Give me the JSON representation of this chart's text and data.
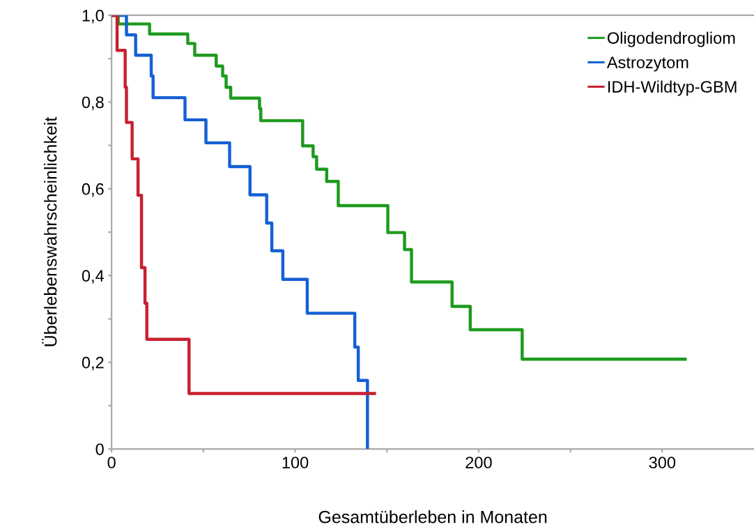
{
  "chart_data": {
    "type": "step",
    "xlabel": "Gesamtüberleben in Monaten",
    "ylabel": "Überlebenswahrscheinlichkeit",
    "xlim": [
      0,
      350
    ],
    "ylim": [
      0,
      1
    ],
    "xticks": [
      0,
      {
        "value": 50,
        "label": null
      },
      100,
      {
        "value": 150,
        "label": null
      },
      200,
      {
        "value": 250,
        "label": null
      },
      300
    ],
    "yticks": [
      {
        "value": 0,
        "label": "0"
      },
      {
        "value": 0.1,
        "label": null
      },
      {
        "value": 0.2,
        "label": "0,2"
      },
      {
        "value": 0.3,
        "label": null
      },
      {
        "value": 0.4,
        "label": "0,4"
      },
      {
        "value": 0.5,
        "label": null
      },
      {
        "value": 0.6,
        "label": "0,6"
      },
      {
        "value": 0.7,
        "label": null
      },
      {
        "value": 0.8,
        "label": "0,8"
      },
      {
        "value": 0.9,
        "label": null
      },
      {
        "value": 1.0,
        "label": "1,0"
      }
    ],
    "grid": false,
    "legend": "top right",
    "marker": "none",
    "line_style": "solid",
    "series": [
      {
        "name": "Oligodendrogliom",
        "color": "#1e9a1e",
        "x": [
          0,
          3.6,
          20.7,
          41.5,
          45.3,
          57.0,
          60.5,
          62.4,
          64.9,
          80.6,
          81.3,
          104.1,
          109.8,
          111.7,
          117.2,
          123.5,
          150.5,
          159.6,
          163.4,
          185.5,
          195.4,
          223.7,
          312.5
        ],
        "values": [
          1.0,
          0.98,
          0.957,
          0.935,
          0.908,
          0.883,
          0.86,
          0.834,
          0.809,
          0.785,
          0.757,
          0.699,
          0.674,
          0.645,
          0.617,
          0.561,
          0.499,
          0.46,
          0.385,
          0.329,
          0.275,
          0.207,
          0.207
        ]
      },
      {
        "name": "Astrozytom",
        "color": "#1560d4",
        "x": [
          0,
          8.1,
          13.1,
          21.6,
          22.6,
          40.0,
          51.4,
          64.3,
          75.4,
          84.5,
          87.3,
          93.3,
          106.6,
          132.5,
          134.4,
          139.4
        ],
        "values": [
          1.0,
          0.955,
          0.908,
          0.86,
          0.81,
          0.759,
          0.706,
          0.651,
          0.586,
          0.521,
          0.457,
          0.391,
          0.313,
          0.235,
          0.158,
          0.0
        ]
      },
      {
        "name": "IDH-Wildtyp-GBM",
        "color": "#c8202f",
        "x": [
          0,
          3.0,
          7.4,
          8.1,
          11.2,
          14.4,
          16.3,
          18.2,
          19.2,
          42.2,
          143.2
        ],
        "values": [
          1.0,
          0.919,
          0.834,
          0.753,
          0.669,
          0.585,
          0.418,
          0.336,
          0.253,
          0.128,
          0.128
        ]
      }
    ]
  }
}
